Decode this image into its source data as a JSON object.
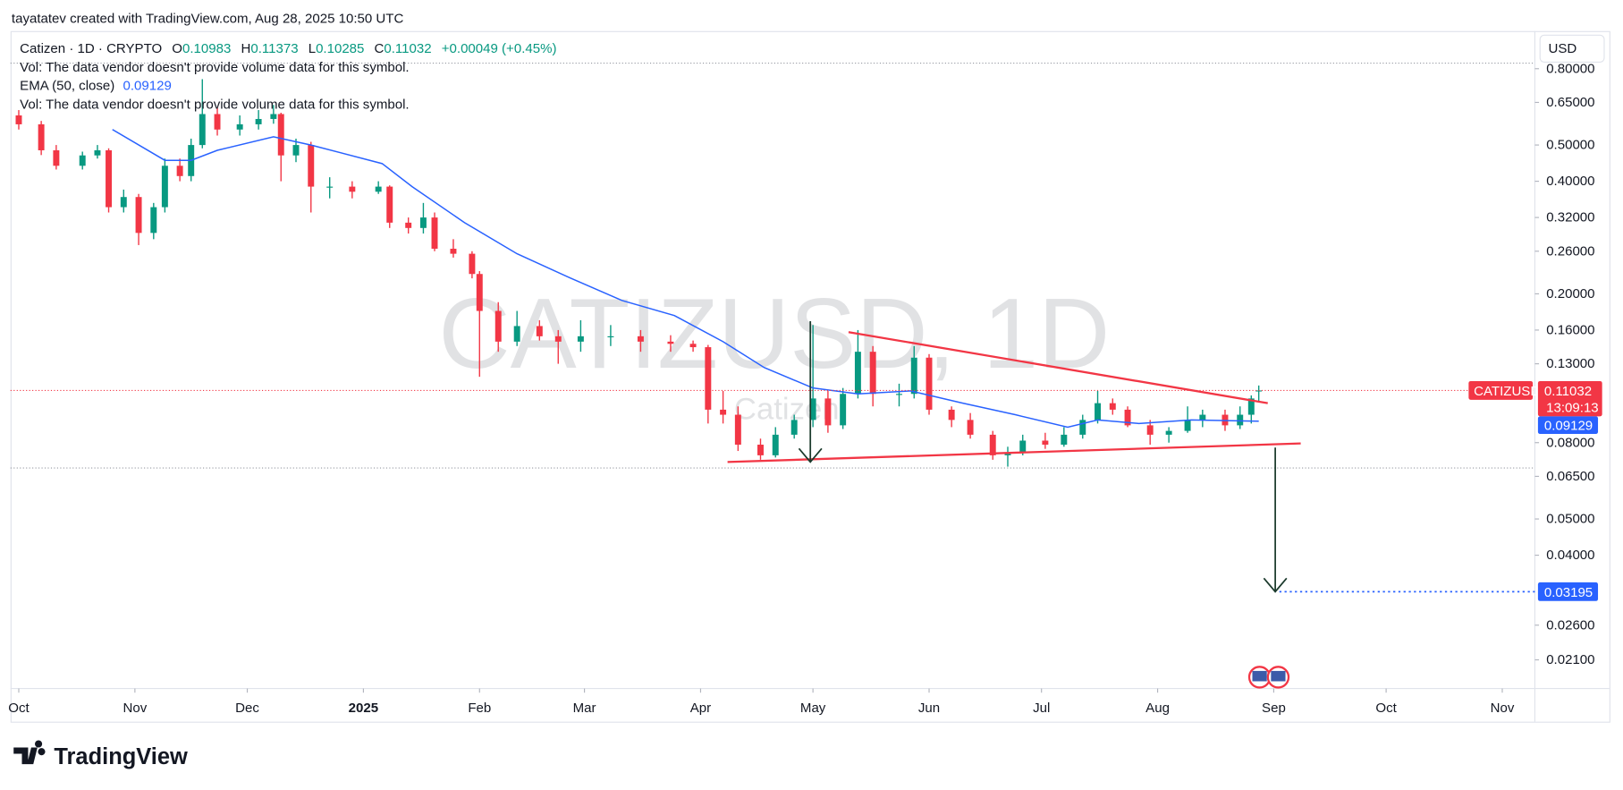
{
  "credit": "tayatatev created with TradingView.com, Aug 28, 2025 10:50 UTC",
  "brand": "TradingView",
  "currency_button": "USD",
  "chart_data": {
    "type": "candlestick",
    "title": "Catizen · 1D · CRYPTO",
    "symbol": "CATIZUSD",
    "watermark": "CATIZUSD, 1D",
    "watermark_sub": "Catizen",
    "change": "+0.00049 (+0.45%)",
    "ohlc_labels": [
      "O",
      "H",
      "L",
      "C"
    ],
    "indicators": [
      "Vol: The data vendor doesn't provide volume data for this symbol.",
      "Vol: The data vendor doesn't provide volume data for this symbol."
    ],
    "countdown": "13:09:13",
    "log_scale": true,
    "up_color": "#089981",
    "down_color": "#f23645",
    "xlim": [
      -2.2,
      404.7
    ],
    "xticks": [
      {
        "value": 0,
        "label": "Oct"
      },
      {
        "value": 31,
        "label": "Nov"
      },
      {
        "value": 61,
        "label": "Dec"
      },
      {
        "value": 92,
        "label": "2025"
      },
      {
        "value": 123,
        "label": "Feb"
      },
      {
        "value": 151,
        "label": "Mar"
      },
      {
        "value": 182,
        "label": "Apr"
      },
      {
        "value": 212,
        "label": "May"
      },
      {
        "value": 243,
        "label": "Jun"
      },
      {
        "value": 273,
        "label": "Jul"
      },
      {
        "value": 304,
        "label": "Aug"
      },
      {
        "value": 335,
        "label": "Sep"
      },
      {
        "value": 365,
        "label": "Oct"
      },
      {
        "value": 396,
        "label": "Nov"
      }
    ],
    "ylim": [
      0.0176,
      0.833
    ],
    "yticks": [
      {
        "value": 0.8,
        "label": "0.80000"
      },
      {
        "value": 0.65,
        "label": "0.65000"
      },
      {
        "value": 0.5,
        "label": "0.50000"
      },
      {
        "value": 0.4,
        "label": "0.40000"
      },
      {
        "value": 0.32,
        "label": "0.32000"
      },
      {
        "value": 0.26,
        "label": "0.26000"
      },
      {
        "value": 0.2,
        "label": "0.20000"
      },
      {
        "value": 0.16,
        "label": "0.16000"
      },
      {
        "value": 0.13,
        "label": "0.13000"
      },
      {
        "value": 0.08,
        "label": "0.08000"
      },
      {
        "value": 0.065,
        "label": "0.06500"
      },
      {
        "value": 0.05,
        "label": "0.05000"
      },
      {
        "value": 0.04,
        "label": "0.04000"
      },
      {
        "value": 0.026,
        "label": "0.02600"
      },
      {
        "value": 0.021,
        "label": "0.02100"
      }
    ],
    "x": [
      0,
      6,
      10,
      17,
      21,
      24,
      28,
      32,
      36,
      39,
      43,
      46,
      49,
      53,
      59,
      64,
      68,
      70,
      74,
      78,
      83,
      89,
      96,
      99,
      104,
      108,
      111,
      116,
      121,
      123,
      128,
      133,
      139,
      144,
      150,
      158,
      166,
      174,
      180,
      184,
      188,
      192,
      198,
      202,
      207,
      212,
      216,
      220,
      224,
      228,
      235,
      239,
      243,
      249,
      254,
      260,
      264,
      268,
      274,
      279,
      284,
      288,
      292,
      296,
      302,
      307,
      312,
      316,
      322,
      326,
      329,
      331
    ],
    "open": [
      0.6,
      0.568,
      0.484,
      0.44,
      0.469,
      0.484,
      0.341,
      0.363,
      0.291,
      0.341,
      0.44,
      0.413,
      0.5,
      0.605,
      0.55,
      0.568,
      0.587,
      0.605,
      0.469,
      0.5,
      0.387,
      0.387,
      0.375,
      0.387,
      0.31,
      0.3,
      0.32,
      0.264,
      0.256,
      0.226,
      0.18,
      0.149,
      0.164,
      0.154,
      0.149,
      0.154,
      0.154,
      0.149,
      0.147,
      0.144,
      0.098,
      0.095,
      0.079,
      0.074,
      0.084,
      0.092,
      0.105,
      0.089,
      0.108,
      0.14,
      0.108,
      0.108,
      0.135,
      0.098,
      0.092,
      0.084,
      0.074,
      0.075,
      0.081,
      0.079,
      0.084,
      0.092,
      0.102,
      0.098,
      0.089,
      0.084,
      0.086,
      0.092,
      0.095,
      0.089,
      0.095,
      0.10983
    ],
    "high": [
      0.62,
      0.58,
      0.5,
      0.48,
      0.5,
      0.49,
      0.38,
      0.37,
      0.35,
      0.46,
      0.46,
      0.52,
      0.75,
      0.63,
      0.6,
      0.62,
      0.64,
      0.61,
      0.52,
      0.51,
      0.41,
      0.4,
      0.4,
      0.39,
      0.32,
      0.35,
      0.33,
      0.28,
      0.26,
      0.23,
      0.19,
      0.18,
      0.17,
      0.16,
      0.17,
      0.165,
      0.16,
      0.155,
      0.15,
      0.146,
      0.11,
      0.1,
      0.082,
      0.088,
      0.095,
      0.165,
      0.11,
      0.112,
      0.16,
      0.145,
      0.115,
      0.145,
      0.138,
      0.1,
      0.096,
      0.086,
      0.078,
      0.084,
      0.085,
      0.088,
      0.095,
      0.11,
      0.105,
      0.1,
      0.092,
      0.088,
      0.1,
      0.098,
      0.098,
      0.1,
      0.107,
      0.11373
    ],
    "low": [
      0.55,
      0.47,
      0.43,
      0.43,
      0.46,
      0.33,
      0.33,
      0.27,
      0.28,
      0.33,
      0.4,
      0.4,
      0.49,
      0.53,
      0.53,
      0.55,
      0.57,
      0.4,
      0.45,
      0.33,
      0.36,
      0.36,
      0.37,
      0.3,
      0.29,
      0.29,
      0.26,
      0.25,
      0.22,
      0.12,
      0.14,
      0.145,
      0.15,
      0.13,
      0.14,
      0.145,
      0.14,
      0.14,
      0.14,
      0.09,
      0.09,
      0.076,
      0.072,
      0.073,
      0.082,
      0.088,
      0.085,
      0.087,
      0.105,
      0.1,
      0.1,
      0.105,
      0.095,
      0.088,
      0.082,
      0.072,
      0.069,
      0.074,
      0.077,
      0.078,
      0.082,
      0.09,
      0.095,
      0.088,
      0.079,
      0.08,
      0.085,
      0.088,
      0.086,
      0.087,
      0.09,
      0.10285
    ],
    "close": [
      0.568,
      0.484,
      0.44,
      0.469,
      0.484,
      0.341,
      0.363,
      0.291,
      0.341,
      0.44,
      0.413,
      0.5,
      0.605,
      0.55,
      0.568,
      0.587,
      0.605,
      0.469,
      0.5,
      0.387,
      0.387,
      0.375,
      0.387,
      0.31,
      0.3,
      0.32,
      0.264,
      0.256,
      0.226,
      0.18,
      0.149,
      0.164,
      0.154,
      0.149,
      0.154,
      0.154,
      0.149,
      0.147,
      0.144,
      0.098,
      0.095,
      0.079,
      0.074,
      0.084,
      0.092,
      0.105,
      0.089,
      0.108,
      0.14,
      0.108,
      0.108,
      0.135,
      0.098,
      0.092,
      0.084,
      0.074,
      0.075,
      0.081,
      0.079,
      0.084,
      0.092,
      0.102,
      0.098,
      0.089,
      0.084,
      0.086,
      0.092,
      0.095,
      0.089,
      0.095,
      0.105,
      0.11032
    ],
    "series": [
      {
        "name": "EMA (50, close)",
        "color": "#2962ff",
        "x": [
          25,
          39,
          46,
          53,
          68,
          78,
          97,
          105,
          119,
          133,
          147,
          161,
          175,
          188,
          199,
          212,
          224,
          238,
          252,
          266,
          280,
          288,
          299,
          313,
          331
        ],
        "values": [
          0.55,
          0.455,
          0.455,
          0.484,
          0.526,
          0.5,
          0.446,
          0.387,
          0.31,
          0.256,
          0.221,
          0.192,
          0.175,
          0.149,
          0.127,
          0.112,
          0.108,
          0.11,
          0.102,
          0.095,
          0.088,
          0.092,
          0.09,
          0.092,
          0.09129
        ]
      }
    ],
    "drawings": [
      {
        "type": "trendline",
        "color": "#f23645",
        "x": [
          221.5,
          333.4
        ],
        "y": [
          0.158,
          0.102
        ]
      },
      {
        "type": "trendline",
        "color": "#f23645",
        "x": [
          189.2,
          342.2
        ],
        "y": [
          0.071,
          0.0796
        ]
      },
      {
        "type": "arrow",
        "color": "#1b3a2c",
        "x": [
          211.3,
          211.3
        ],
        "y": [
          0.169,
          0.071
        ]
      },
      {
        "type": "arrow",
        "color": "#1b3a2c",
        "x": [
          335.4,
          335.4
        ],
        "y": [
          0.0776,
          0.03195
        ]
      }
    ]
  }
}
